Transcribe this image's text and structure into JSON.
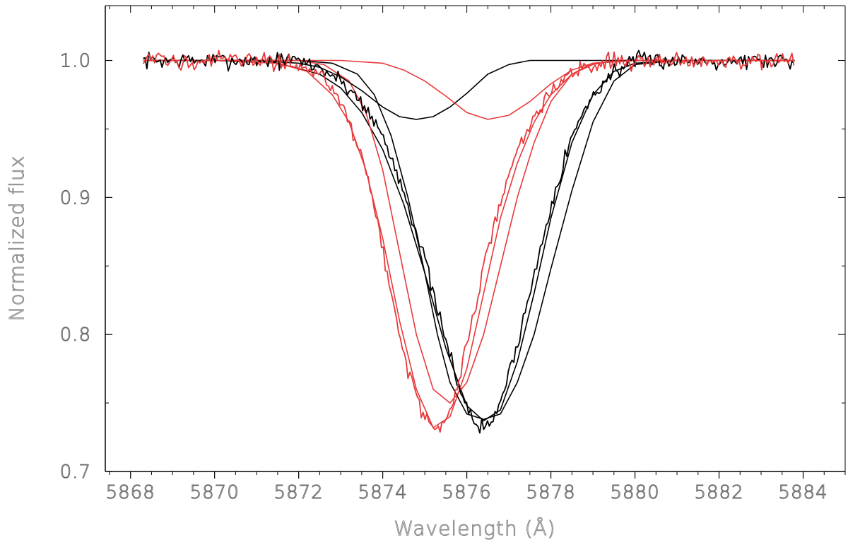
{
  "chart_data": {
    "type": "line",
    "title": "",
    "xlabel": "Wavelength (Å)",
    "ylabel": "Normalized flux",
    "xlim": [
      5867.4,
      5885.0
    ],
    "ylim": [
      0.7,
      1.04
    ],
    "xticks": [
      5868,
      5870,
      5872,
      5874,
      5876,
      5878,
      5880,
      5882,
      5884
    ],
    "xtick_labels": [
      "5868",
      "5870",
      "5872",
      "5874",
      "5876",
      "5878",
      "5880",
      "5882",
      "5884"
    ],
    "yticks": [
      0.7,
      0.8,
      0.9,
      1.0
    ],
    "ytick_labels": [
      "0.7",
      "0.8",
      "0.9",
      "1.0"
    ],
    "grid": false,
    "legend": "none",
    "colors": {
      "black": "#000000",
      "red": "#e8393a"
    },
    "series": [
      {
        "color": "#000000",
        "style": "noisy",
        "x": [
          5868.3,
          5869.0,
          5870.0,
          5871.0,
          5872.0,
          5872.5,
          5873.0,
          5873.5,
          5874.0,
          5874.5,
          5875.0,
          5875.4,
          5875.8,
          5876.0,
          5876.3,
          5876.6,
          5877.0,
          5877.5,
          5878.0,
          5878.5,
          5879.0,
          5879.5,
          5880.0,
          5881.0,
          5882.0,
          5883.0,
          5883.8
        ],
        "y": [
          1.0,
          1.0,
          1.0,
          1.0,
          1.0,
          0.995,
          0.985,
          0.97,
          0.945,
          0.905,
          0.855,
          0.805,
          0.765,
          0.745,
          0.732,
          0.735,
          0.77,
          0.83,
          0.895,
          0.945,
          0.975,
          0.992,
          1.0,
          1.0,
          1.0,
          1.0,
          1.0
        ]
      },
      {
        "color": "#e8393a",
        "style": "noisy",
        "x": [
          5868.3,
          5869.0,
          5870.0,
          5871.0,
          5872.0,
          5872.5,
          5873.0,
          5873.5,
          5873.8,
          5874.0,
          5874.3,
          5874.6,
          5874.9,
          5875.2,
          5875.5,
          5875.8,
          5876.2,
          5876.6,
          5877.0,
          5877.5,
          5878.0,
          5878.5,
          5879.0,
          5879.5,
          5880.0,
          5881.0,
          5882.0,
          5883.0,
          5883.8
        ],
        "y": [
          1.0,
          1.0,
          1.0,
          1.0,
          0.998,
          0.99,
          0.97,
          0.93,
          0.895,
          0.86,
          0.815,
          0.775,
          0.745,
          0.73,
          0.735,
          0.765,
          0.82,
          0.875,
          0.92,
          0.955,
          0.978,
          0.99,
          0.997,
          1.0,
          1.0,
          1.0,
          1.0,
          1.0,
          1.0
        ]
      },
      {
        "color": "#000000",
        "style": "smooth",
        "x": [
          5868.3,
          5870.0,
          5871.5,
          5872.5,
          5873.0,
          5873.5,
          5874.0,
          5874.5,
          5875.0,
          5875.5,
          5876.0,
          5876.4,
          5876.8,
          5877.2,
          5877.6,
          5878.0,
          5878.5,
          5879.0,
          5879.5,
          5880.0,
          5881.0,
          5883.8
        ],
        "y": [
          1.0,
          1.0,
          0.998,
          0.99,
          0.98,
          0.962,
          0.935,
          0.895,
          0.845,
          0.79,
          0.748,
          0.737,
          0.745,
          0.78,
          0.83,
          0.885,
          0.94,
          0.975,
          0.992,
          0.998,
          1.0,
          1.0
        ]
      },
      {
        "color": "#e8393a",
        "style": "smooth",
        "x": [
          5868.3,
          5870.0,
          5871.5,
          5872.2,
          5872.8,
          5873.2,
          5873.6,
          5874.0,
          5874.4,
          5874.8,
          5875.2,
          5875.6,
          5876.0,
          5876.4,
          5876.8,
          5877.2,
          5877.6,
          5878.0,
          5878.5,
          5879.0,
          5879.5,
          5880.0,
          5881.0,
          5883.8
        ],
        "y": [
          1.0,
          1.0,
          0.998,
          0.992,
          0.975,
          0.955,
          0.92,
          0.87,
          0.81,
          0.76,
          0.732,
          0.74,
          0.775,
          0.83,
          0.885,
          0.925,
          0.955,
          0.975,
          0.99,
          0.997,
          1.0,
          1.0,
          1.0,
          1.0
        ]
      },
      {
        "color": "#000000",
        "style": "smooth",
        "x": [
          5868.3,
          5870.0,
          5872.0,
          5872.8,
          5873.4,
          5873.8,
          5874.2,
          5874.6,
          5875.0,
          5875.3,
          5875.6,
          5876.0,
          5876.4,
          5876.8,
          5877.2,
          5877.6,
          5878.0,
          5878.5,
          5879.0,
          5879.5,
          5880.0,
          5881.0,
          5883.8
        ],
        "y": [
          1.0,
          1.0,
          1.0,
          0.998,
          0.99,
          0.975,
          0.945,
          0.9,
          0.845,
          0.8,
          0.765,
          0.742,
          0.738,
          0.742,
          0.765,
          0.8,
          0.848,
          0.905,
          0.955,
          0.985,
          0.997,
          1.0,
          1.0
        ]
      },
      {
        "color": "#e8393a",
        "style": "smooth",
        "x": [
          5868.3,
          5870.0,
          5872.0,
          5872.6,
          5873.2,
          5873.6,
          5874.0,
          5874.4,
          5874.8,
          5875.2,
          5875.6,
          5876.0,
          5876.4,
          5876.8,
          5877.2,
          5877.6,
          5878.0,
          5878.5,
          5879.0,
          5880.0,
          5883.8
        ],
        "y": [
          1.0,
          1.0,
          1.0,
          0.997,
          0.985,
          0.962,
          0.92,
          0.86,
          0.8,
          0.76,
          0.75,
          0.765,
          0.8,
          0.85,
          0.9,
          0.94,
          0.97,
          0.99,
          0.998,
          1.0,
          1.0
        ]
      },
      {
        "color": "#000000",
        "style": "smooth",
        "x": [
          5868.3,
          5871.0,
          5872.0,
          5872.5,
          5873.0,
          5873.5,
          5874.0,
          5874.4,
          5874.8,
          5875.2,
          5875.6,
          5876.0,
          5876.5,
          5877.0,
          5877.5,
          5878.0,
          5879.0,
          5883.8
        ],
        "y": [
          1.0,
          1.0,
          0.998,
          0.995,
          0.988,
          0.978,
          0.966,
          0.959,
          0.957,
          0.959,
          0.966,
          0.976,
          0.99,
          0.997,
          1.0,
          1.0,
          1.0,
          1.0
        ]
      },
      {
        "color": "#e8393a",
        "style": "smooth",
        "x": [
          5868.3,
          5873.0,
          5874.0,
          5874.5,
          5875.0,
          5875.5,
          5876.0,
          5876.5,
          5877.0,
          5877.5,
          5878.0,
          5878.5,
          5879.0,
          5880.0,
          5883.8
        ],
        "y": [
          1.0,
          1.0,
          0.998,
          0.993,
          0.985,
          0.974,
          0.962,
          0.957,
          0.96,
          0.97,
          0.983,
          0.993,
          0.998,
          1.0,
          1.0
        ]
      }
    ]
  }
}
